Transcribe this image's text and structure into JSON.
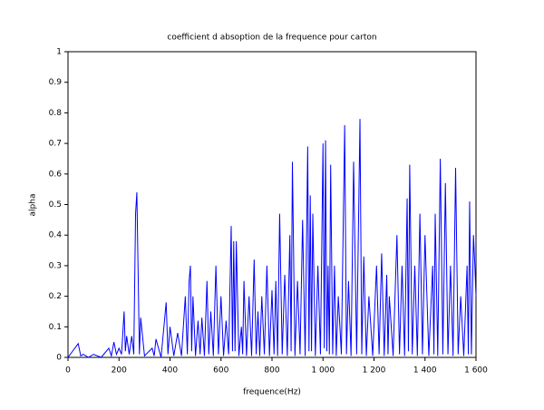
{
  "chart_data": {
    "type": "line",
    "title": "coefficient d absoption de la frequence pour carton",
    "x_label": "frequence(Hz)",
    "y_label": "alpha",
    "series": [
      {
        "name": "alpha",
        "color": "#0000ff",
        "x": [
          0,
          40,
          50,
          60,
          80,
          100,
          130,
          160,
          170,
          180,
          190,
          200,
          210,
          220,
          225,
          230,
          240,
          250,
          258,
          265,
          270,
          275,
          280,
          285,
          300,
          330,
          338,
          345,
          365,
          385,
          392,
          400,
          415,
          430,
          445,
          460,
          468,
          475,
          480,
          485,
          490,
          500,
          510,
          518,
          525,
          535,
          545,
          552,
          560,
          570,
          580,
          590,
          600,
          610,
          620,
          630,
          640,
          645,
          650,
          655,
          660,
          670,
          680,
          685,
          690,
          700,
          710,
          720,
          730,
          738,
          745,
          752,
          760,
          770,
          780,
          790,
          800,
          808,
          815,
          822,
          830,
          840,
          850,
          860,
          870,
          875,
          880,
          890,
          900,
          910,
          920,
          930,
          940,
          945,
          950,
          955,
          960,
          970,
          980,
          990,
          1000,
          1005,
          1010,
          1015,
          1020,
          1025,
          1030,
          1038,
          1045,
          1052,
          1060,
          1072,
          1085,
          1092,
          1100,
          1110,
          1120,
          1132,
          1145,
          1152,
          1160,
          1170,
          1180,
          1195,
          1210,
          1220,
          1230,
          1240,
          1250,
          1255,
          1260,
          1275,
          1290,
          1300,
          1310,
          1320,
          1330,
          1335,
          1340,
          1350,
          1360,
          1370,
          1380,
          1390,
          1400,
          1415,
          1430,
          1435,
          1440,
          1450,
          1460,
          1470,
          1480,
          1490,
          1500,
          1510,
          1520,
          1530,
          1540,
          1552,
          1565,
          1570,
          1575,
          1582,
          1590,
          1595,
          1600
        ],
        "values": [
          0,
          0.045,
          0.005,
          0.01,
          0,
          0.01,
          0,
          0.03,
          0.005,
          0.05,
          0.01,
          0.03,
          0.01,
          0.15,
          0.02,
          0.07,
          0.01,
          0.07,
          0.01,
          0.47,
          0.54,
          0.28,
          0.01,
          0.13,
          0.005,
          0.03,
          0.005,
          0.06,
          0,
          0.18,
          0.01,
          0.1,
          0.005,
          0.08,
          0.005,
          0.2,
          0.01,
          0.25,
          0.3,
          0.02,
          0.2,
          0.005,
          0.12,
          0.01,
          0.13,
          0.005,
          0.25,
          0.01,
          0.15,
          0.005,
          0.3,
          0.01,
          0.2,
          0.005,
          0.12,
          0.01,
          0.43,
          0.02,
          0.38,
          0.02,
          0.38,
          0.005,
          0.1,
          0.01,
          0.25,
          0.005,
          0.2,
          0.005,
          0.32,
          0.01,
          0.15,
          0.005,
          0.2,
          0.01,
          0.3,
          0.005,
          0.22,
          0.01,
          0.25,
          0.005,
          0.47,
          0.01,
          0.27,
          0.005,
          0.4,
          0.02,
          0.64,
          0.005,
          0.25,
          0.01,
          0.45,
          0.005,
          0.69,
          0.02,
          0.53,
          0.02,
          0.47,
          0.005,
          0.3,
          0.01,
          0.7,
          0.03,
          0.71,
          0.02,
          0.3,
          0.01,
          0.63,
          0.01,
          0.3,
          0.005,
          0.2,
          0.01,
          0.76,
          0.01,
          0.25,
          0.005,
          0.64,
          0.01,
          0.78,
          0.01,
          0.33,
          0.005,
          0.2,
          0.005,
          0.3,
          0.01,
          0.34,
          0.005,
          0.27,
          0.01,
          0.2,
          0.005,
          0.4,
          0.01,
          0.3,
          0.005,
          0.52,
          0.02,
          0.63,
          0.01,
          0.3,
          0.005,
          0.47,
          0.01,
          0.4,
          0.005,
          0.3,
          0.01,
          0.47,
          0.005,
          0.65,
          0.01,
          0.57,
          0.01,
          0.3,
          0.005,
          0.62,
          0.01,
          0.2,
          0.005,
          0.3,
          0.01,
          0.51,
          0.01,
          0.4,
          0.31,
          0.2
        ]
      }
    ],
    "xlim": [
      0,
      1600
    ],
    "ylim": [
      0,
      1
    ],
    "xticks": [
      0,
      200,
      400,
      600,
      800,
      {
        "value": 1000,
        "label": "1 000"
      },
      {
        "value": 1200,
        "label": "1 200"
      },
      {
        "value": 1400,
        "label": "1 400"
      },
      {
        "value": 1600,
        "label": "1 600"
      }
    ],
    "yticks": [
      0,
      0.1,
      0.2,
      0.3,
      0.4,
      0.5,
      0.6,
      0.7,
      0.8,
      0.9,
      1
    ]
  }
}
